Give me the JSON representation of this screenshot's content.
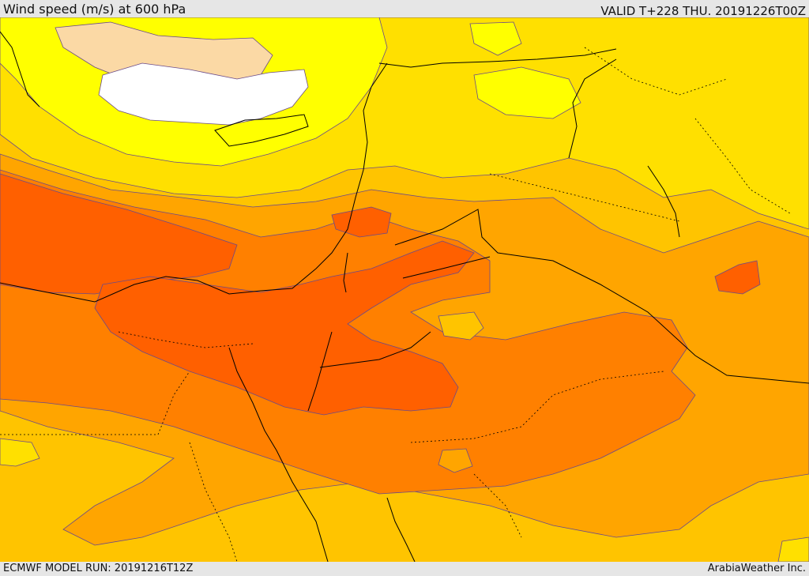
{
  "header": {
    "title": "Wind speed (m/s) at 600 hPa",
    "valid_time": "VALID T+228 THU. 20191226T00Z"
  },
  "footer": {
    "model_run": "ECMWF MODEL RUN: 20191216T12Z",
    "credit": "ArabiaWeather Inc."
  },
  "map": {
    "field": "wind speed at 600 hPa",
    "colors": {
      "calm": "#ffffff",
      "very_light": "#fbd9a5",
      "light": "#ffff00",
      "light_moderate": "#ffe000",
      "moderate": "#ffc400",
      "moderate_strong": "#ffa500",
      "strong": "#ff8000",
      "very_strong": "#ff6000",
      "contour_line": "#6a4a8a",
      "border_line": "#000000"
    }
  }
}
